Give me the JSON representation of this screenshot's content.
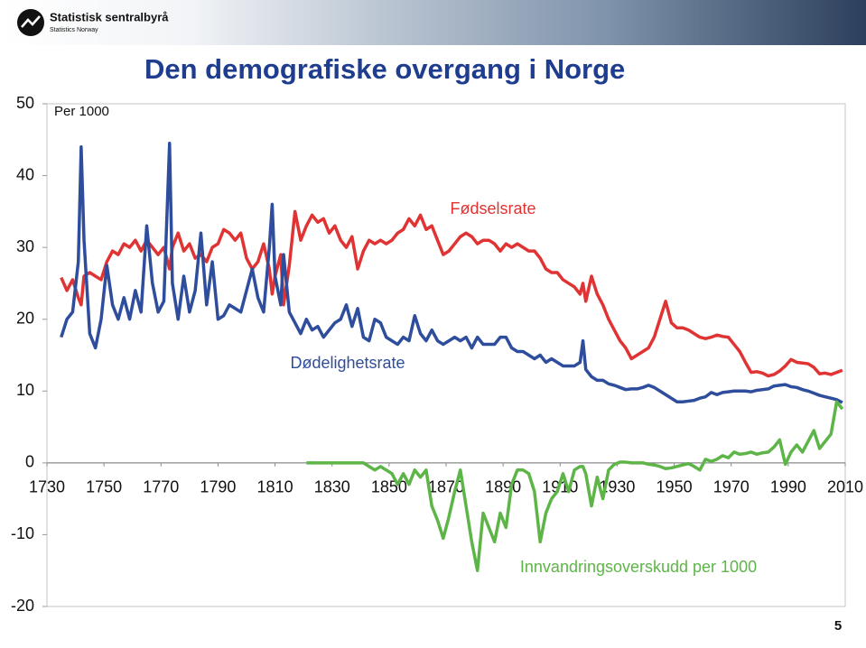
{
  "header": {
    "logo": "Statistisk sentralbyrå",
    "logo_sub": "Statistics Norway"
  },
  "page_number": 5,
  "chart_data": {
    "type": "line",
    "title": "Den demografiske overgang i Norge",
    "y_label": "Per 1000",
    "xlim": [
      1730,
      2010
    ],
    "xticks": [
      1730,
      1750,
      1770,
      1790,
      1810,
      1830,
      1850,
      1870,
      1890,
      1910,
      1930,
      1950,
      1970,
      1990,
      2010
    ],
    "ylim": [
      -20,
      50
    ],
    "yticks": [
      -20,
      -10,
      0,
      10,
      20,
      30,
      40,
      50
    ],
    "grid": false,
    "x": [
      1735,
      1737,
      1739,
      1741,
      1742,
      1743,
      1745,
      1747,
      1749,
      1751,
      1753,
      1755,
      1757,
      1759,
      1761,
      1763,
      1765,
      1767,
      1769,
      1771,
      1773,
      1774,
      1776,
      1778,
      1780,
      1782,
      1784,
      1786,
      1788,
      1790,
      1792,
      1794,
      1796,
      1798,
      1800,
      1802,
      1804,
      1806,
      1808,
      1809,
      1810,
      1812,
      1813,
      1815,
      1817,
      1819,
      1821,
      1823,
      1825,
      1827,
      1829,
      1831,
      1833,
      1835,
      1837,
      1839,
      1841,
      1843,
      1845,
      1847,
      1849,
      1851,
      1853,
      1855,
      1857,
      1859,
      1861,
      1863,
      1865,
      1867,
      1869,
      1871,
      1873,
      1875,
      1877,
      1879,
      1881,
      1883,
      1885,
      1887,
      1889,
      1891,
      1893,
      1895,
      1897,
      1899,
      1901,
      1903,
      1905,
      1907,
      1909,
      1911,
      1913,
      1915,
      1917,
      1918,
      1919,
      1921,
      1923,
      1925,
      1927,
      1929,
      1931,
      1933,
      1935,
      1937,
      1939,
      1941,
      1943,
      1945,
      1947,
      1949,
      1951,
      1953,
      1955,
      1957,
      1959,
      1961,
      1963,
      1965,
      1967,
      1969,
      1971,
      1973,
      1975,
      1977,
      1979,
      1981,
      1983,
      1985,
      1987,
      1989,
      1991,
      1993,
      1995,
      1997,
      1999,
      2001,
      2003,
      2005,
      2007,
      2009
    ],
    "series": [
      {
        "name": "Fødselsrate",
        "color": "#e03333",
        "values": [
          25.8,
          24,
          25.5,
          23,
          22,
          26,
          26.5,
          26,
          25.5,
          28,
          29.5,
          29,
          30.5,
          30,
          31,
          29.5,
          31,
          30,
          29,
          30,
          27,
          30,
          32,
          29.5,
          30.5,
          28.5,
          29,
          28,
          30,
          30.5,
          32.5,
          32,
          31,
          32,
          28.5,
          27,
          28,
          30.5,
          27,
          23.5,
          26,
          29,
          22,
          27.5,
          35,
          31,
          33,
          34.5,
          33.5,
          34,
          32,
          33,
          31,
          30,
          31.5,
          27,
          29.5,
          31,
          30.5,
          31,
          30.5,
          31,
          32,
          32.5,
          34,
          33,
          34.5,
          32.5,
          33,
          31,
          29,
          29.5,
          30.5,
          31.5,
          32,
          31.5,
          30.5,
          31,
          31,
          30.5,
          29.5,
          30.5,
          30,
          30.5,
          30,
          29.5,
          29.5,
          28.5,
          27,
          26.5,
          26.5,
          25.5,
          25,
          24.5,
          23.5,
          25,
          22.5,
          26,
          23.5,
          22,
          20,
          18.5,
          17,
          16,
          14.5,
          15,
          15.5,
          16,
          17.5,
          20,
          22.5,
          19.5,
          18.8,
          18.8,
          18.5,
          18,
          17.5,
          17.3,
          17.5,
          17.8,
          17.6,
          17.5,
          16.5,
          15.5,
          14,
          12.6,
          12.7,
          12.5,
          12.1,
          12.3,
          12.8,
          13.5,
          14.4,
          14,
          13.9,
          13.8,
          13.3,
          12.4,
          12.5,
          12.3,
          12.6,
          12.9
        ]
      },
      {
        "name": "Dødelighetsrate",
        "color": "#2e4d9c",
        "values": [
          17.5,
          20,
          21,
          28,
          44,
          31,
          18,
          16,
          20,
          27.5,
          22,
          20,
          23,
          20,
          24,
          21,
          33,
          25,
          21,
          22.5,
          44.5,
          25,
          20,
          26,
          21,
          24,
          32,
          22,
          28,
          20,
          20.5,
          22,
          21.5,
          21,
          24,
          27,
          23,
          21,
          30,
          36,
          26,
          22,
          29,
          21,
          19.5,
          18,
          20,
          18.5,
          19,
          17.5,
          18.5,
          19.5,
          20,
          22,
          19,
          21.5,
          17.5,
          17,
          20,
          19.5,
          17.5,
          17,
          16.5,
          17.5,
          17,
          20.5,
          18,
          17,
          18.5,
          17,
          16.5,
          17,
          17.5,
          17,
          17.5,
          16,
          17.5,
          16.5,
          16.5,
          16.5,
          17.5,
          17.5,
          16,
          15.5,
          15.5,
          15,
          14.5,
          15,
          14,
          14.5,
          14,
          13.5,
          13.5,
          13.5,
          14,
          17,
          13,
          12,
          11.5,
          11.5,
          11,
          10.8,
          10.5,
          10.2,
          10.3,
          10.3,
          10.5,
          10.8,
          10.5,
          10,
          9.5,
          9,
          8.5,
          8.5,
          8.6,
          8.7,
          9,
          9.2,
          9.8,
          9.5,
          9.8,
          9.9,
          10,
          10,
          10,
          9.9,
          10.1,
          10.2,
          10.3,
          10.7,
          10.8,
          10.9,
          10.6,
          10.5,
          10.2,
          10,
          9.7,
          9.4,
          9.2,
          9,
          8.8,
          8.4
        ]
      },
      {
        "name": "Innvandringsoverskudd per 1000",
        "color": "#5db548",
        "values": [
          null,
          null,
          null,
          null,
          null,
          null,
          null,
          null,
          null,
          null,
          null,
          null,
          null,
          null,
          null,
          null,
          null,
          null,
          null,
          null,
          null,
          null,
          null,
          null,
          null,
          null,
          null,
          null,
          null,
          null,
          null,
          null,
          null,
          null,
          null,
          null,
          null,
          null,
          null,
          null,
          null,
          null,
          null,
          null,
          null,
          null,
          0,
          0,
          0,
          0,
          0,
          0,
          0,
          0,
          0,
          0,
          0,
          -0.5,
          -1,
          -0.5,
          -1,
          -1.5,
          -3,
          -1.5,
          -3,
          -1,
          -2,
          -1,
          -6,
          -8,
          -10.5,
          -7.5,
          -4,
          -1,
          -6,
          -11,
          -15,
          -7,
          -9,
          -11,
          -7,
          -9,
          -3,
          -1,
          -1,
          -1.5,
          -4,
          -11,
          -7,
          -5,
          -4,
          -1.5,
          -4,
          -1,
          -0.5,
          -0.5,
          -1.5,
          -6,
          -2,
          -5,
          -1,
          -0.2,
          0.1,
          0.1,
          0,
          0,
          0,
          -0.2,
          -0.3,
          -0.5,
          -0.8,
          -0.7,
          -0.5,
          -0.3,
          -0.1,
          -0.5,
          -1,
          0.5,
          0.2,
          0.5,
          1,
          0.7,
          1.5,
          1.2,
          1.3,
          1.5,
          1.2,
          1.4,
          1.5,
          2.2,
          3.2,
          -0.2,
          1.5,
          2.5,
          1.5,
          3,
          4.5,
          2,
          3,
          4,
          8.5,
          7.5
        ]
      }
    ]
  }
}
